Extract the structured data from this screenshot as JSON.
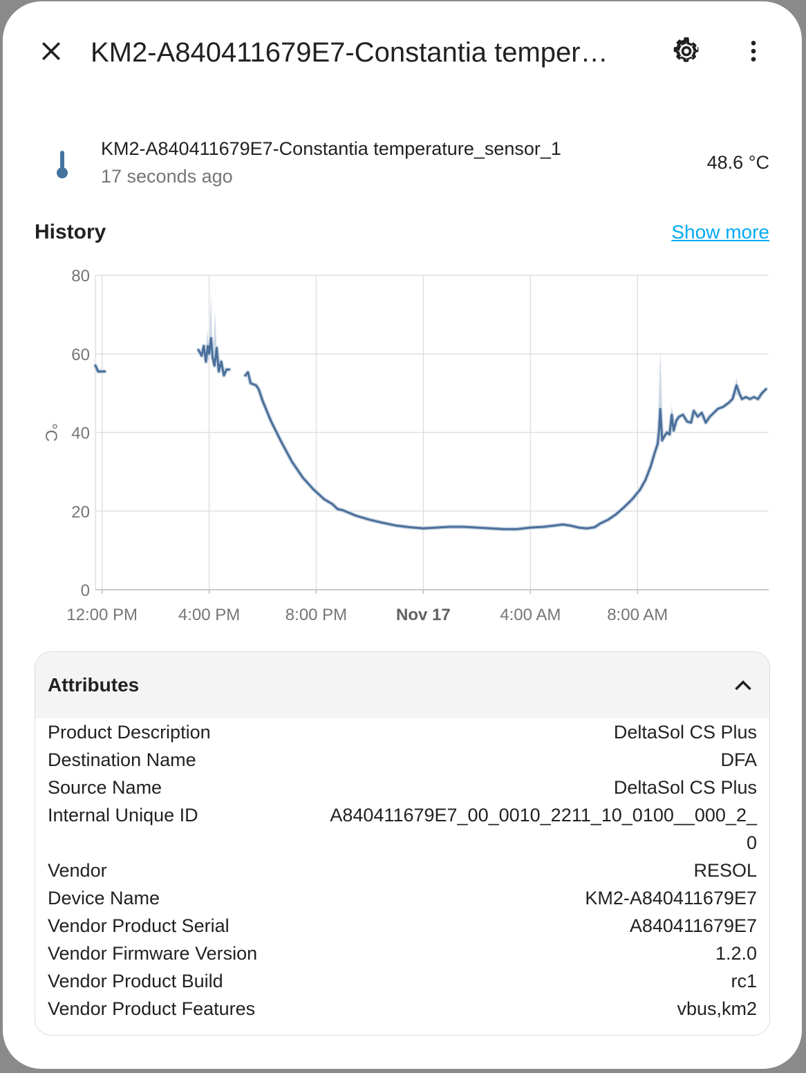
{
  "header": {
    "title": "KM2-A840411679E7-Constantia temper…",
    "close_icon": "close-icon",
    "settings_icon": "gear-icon",
    "more_icon": "more-vertical-icon"
  },
  "entity": {
    "name": "KM2-A840411679E7-Constantia temperature_sensor_1",
    "last_changed": "17 seconds ago",
    "state": "48.6 °C",
    "icon": "thermometer-icon"
  },
  "history": {
    "title": "History",
    "show_more": "Show more"
  },
  "chart_data": {
    "type": "line",
    "ylabel": "°C",
    "ylim": [
      0,
      80
    ],
    "yticks": [
      "0",
      "20",
      "40",
      "60",
      "80"
    ],
    "xticks": [
      "12:00 PM",
      "4:00 PM",
      "8:00 PM",
      "Nov 17",
      "4:00 AM",
      "8:00 AM"
    ],
    "xlim_hours": [
      -0.25,
      24.9
    ],
    "series_color": "#4a6f9a",
    "band_color": "#c9d5e3",
    "grid": true,
    "segments": [
      [
        [
          -0.25,
          57.0
        ],
        [
          -0.15,
          55.5
        ],
        [
          0.1,
          55.5
        ]
      ],
      [
        [
          3.6,
          61
        ],
        [
          3.72,
          59.5
        ],
        [
          3.8,
          62
        ],
        [
          3.88,
          58
        ],
        [
          3.95,
          62
        ],
        [
          4.0,
          60
        ],
        [
          4.07,
          64
        ],
        [
          4.13,
          59
        ],
        [
          4.2,
          57
        ],
        [
          4.28,
          61.5
        ],
        [
          4.36,
          55.5
        ],
        [
          4.45,
          58
        ],
        [
          4.55,
          54.5
        ],
        [
          4.65,
          56
        ],
        [
          4.75,
          56
        ]
      ],
      [
        [
          5.35,
          54.5
        ],
        [
          5.45,
          55.3
        ],
        [
          5.55,
          52.5
        ],
        [
          5.75,
          52
        ],
        [
          5.85,
          51
        ],
        [
          6.0,
          48
        ],
        [
          6.3,
          43
        ],
        [
          6.7,
          37.5
        ],
        [
          7.1,
          32.5
        ],
        [
          7.5,
          28.5
        ],
        [
          7.9,
          25.5
        ],
        [
          8.3,
          23
        ],
        [
          8.6,
          21.8
        ],
        [
          8.8,
          20.5
        ],
        [
          9.0,
          20.2
        ],
        [
          9.5,
          18.8
        ],
        [
          10.0,
          17.8
        ],
        [
          10.5,
          17.0
        ],
        [
          11.0,
          16.3
        ],
        [
          11.5,
          15.9
        ],
        [
          12.0,
          15.6
        ],
        [
          12.5,
          15.8
        ],
        [
          13.0,
          16.0
        ],
        [
          13.5,
          16.0
        ],
        [
          14.0,
          15.8
        ],
        [
          14.5,
          15.6
        ],
        [
          15.0,
          15.4
        ],
        [
          15.5,
          15.4
        ],
        [
          16.0,
          15.8
        ],
        [
          16.5,
          16.0
        ],
        [
          17.0,
          16.4
        ],
        [
          17.2,
          16.6
        ],
        [
          17.5,
          16.3
        ],
        [
          17.8,
          15.8
        ],
        [
          18.1,
          15.6
        ],
        [
          18.4,
          15.9
        ],
        [
          18.6,
          16.8
        ],
        [
          18.9,
          17.8
        ],
        [
          19.2,
          19.2
        ],
        [
          19.5,
          21.0
        ],
        [
          19.8,
          23.0
        ],
        [
          20.1,
          25.5
        ],
        [
          20.3,
          28.0
        ],
        [
          20.5,
          31.5
        ],
        [
          20.65,
          35.0
        ],
        [
          20.75,
          37.0
        ],
        [
          20.8,
          40.0
        ],
        [
          20.85,
          46.0
        ],
        [
          20.92,
          38.0
        ],
        [
          21.0,
          39.0
        ],
        [
          21.1,
          40.0
        ],
        [
          21.2,
          39.5
        ],
        [
          21.28,
          44.5
        ],
        [
          21.35,
          40.5
        ],
        [
          21.45,
          43.0
        ],
        [
          21.55,
          44.0
        ],
        [
          21.7,
          44.5
        ],
        [
          21.85,
          42.8
        ],
        [
          22.0,
          42.5
        ],
        [
          22.1,
          45.5
        ],
        [
          22.25,
          44.0
        ],
        [
          22.4,
          45.0
        ],
        [
          22.55,
          42.5
        ],
        [
          22.7,
          44.0
        ],
        [
          22.85,
          45.0
        ],
        [
          23.0,
          46.0
        ],
        [
          23.2,
          46.5
        ],
        [
          23.4,
          47.5
        ],
        [
          23.55,
          48.5
        ],
        [
          23.7,
          52.0
        ],
        [
          23.8,
          50.0
        ],
        [
          23.9,
          48.5
        ],
        [
          24.05,
          49.0
        ],
        [
          24.2,
          48.5
        ],
        [
          24.35,
          49.0
        ],
        [
          24.5,
          48.5
        ],
        [
          24.65,
          50.0
        ],
        [
          24.8,
          51.0
        ]
      ]
    ],
    "band_spikes": [
      [
        [
          3.85,
          60
        ],
        [
          3.95,
          66
        ],
        [
          4.0,
          58
        ]
      ],
      [
        [
          4.0,
          62
        ],
        [
          4.07,
          75
        ],
        [
          4.13,
          60
        ]
      ],
      [
        [
          4.15,
          60
        ],
        [
          4.22,
          71
        ],
        [
          4.3,
          58
        ]
      ],
      [
        [
          20.75,
          40
        ],
        [
          20.85,
          61
        ],
        [
          20.95,
          40
        ]
      ],
      [
        [
          21.2,
          40
        ],
        [
          21.28,
          47
        ],
        [
          21.38,
          41
        ]
      ],
      [
        [
          23.6,
          49
        ],
        [
          23.7,
          54
        ],
        [
          23.8,
          50
        ]
      ]
    ]
  },
  "attributes": {
    "title": "Attributes",
    "toggle_icon": "chevron-up-icon",
    "rows": [
      {
        "key": "Product Description",
        "value": "DeltaSol CS Plus"
      },
      {
        "key": "Destination Name",
        "value": "DFA"
      },
      {
        "key": "Source Name",
        "value": "DeltaSol CS Plus"
      },
      {
        "key": "Internal Unique ID",
        "value": "A840411679E7_00_0010_2211_10_0100__000_2_0"
      },
      {
        "key": "Vendor",
        "value": "RESOL"
      },
      {
        "key": "Device Name",
        "value": "KM2-A840411679E7"
      },
      {
        "key": "Vendor Product Serial",
        "value": "A840411679E7"
      },
      {
        "key": "Vendor Firmware Version",
        "value": "1.2.0"
      },
      {
        "key": "Vendor Product Build",
        "value": "rc1"
      },
      {
        "key": "Vendor Product Features",
        "value": "vbus,km2"
      }
    ]
  }
}
